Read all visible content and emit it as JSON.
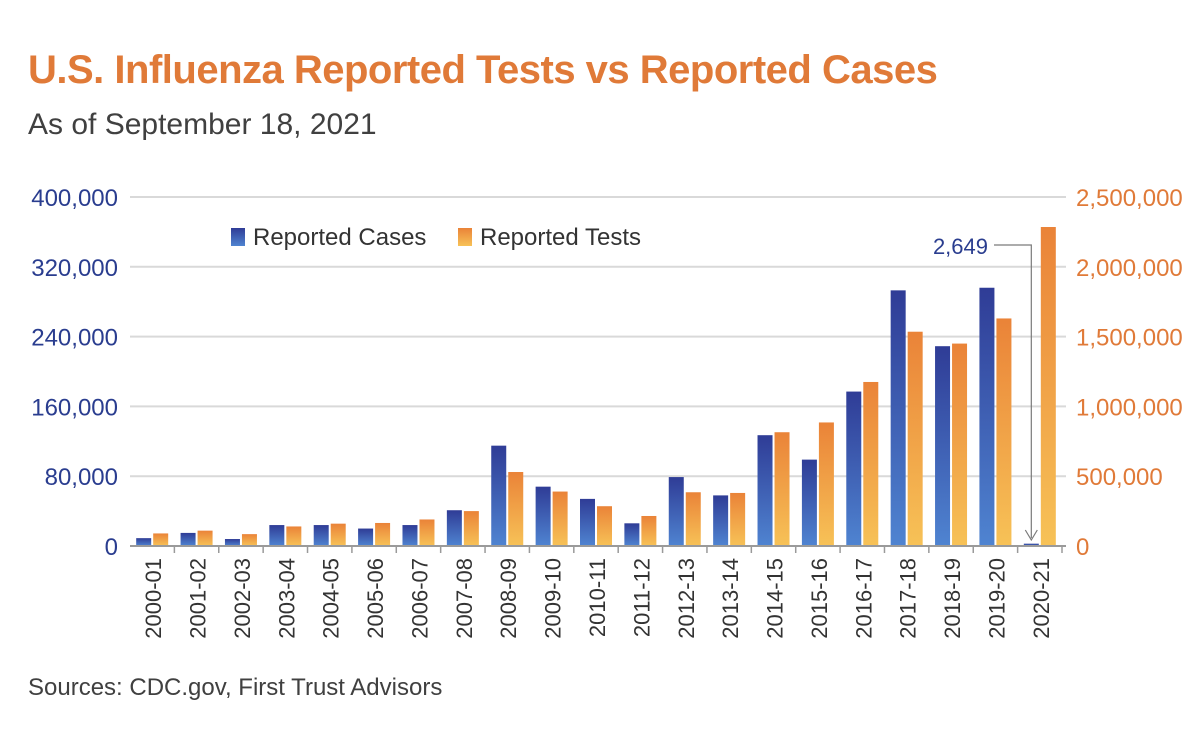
{
  "colors": {
    "title": "#e07a38",
    "subtitle": "#404040",
    "left_axis": "#2a3d8f",
    "right_axis": "#e07a38",
    "cases_top": "#2f3c96",
    "cases_bottom": "#4f84d1",
    "tests_top": "#ea8338",
    "tests_bottom": "#f7c257",
    "grid": "#d9d9d9",
    "source": "#404040"
  },
  "chart_data": {
    "type": "bar",
    "title": "U.S. Influenza Reported Tests vs Reported Cases",
    "subtitle": "As of September 18, 2021",
    "source": "Sources: CDC.gov, First Trust Advisors",
    "categories": [
      "2000-01",
      "2001-02",
      "2002-03",
      "2003-04",
      "2004-05",
      "2005-06",
      "2006-07",
      "2007-08",
      "2008-09",
      "2009-10",
      "2010-11",
      "2011-12",
      "2012-13",
      "2013-14",
      "2014-15",
      "2015-16",
      "2016-17",
      "2017-18",
      "2018-19",
      "2019-20",
      "2020-21"
    ],
    "series": [
      {
        "name": "Reported Cases",
        "axis": "left",
        "values": [
          9000,
          15000,
          8000,
          24000,
          24000,
          20000,
          24000,
          41000,
          115000,
          68000,
          54000,
          26000,
          79000,
          58000,
          127000,
          99000,
          177000,
          293000,
          229000,
          296000,
          2649
        ]
      },
      {
        "name": "Reported Tests",
        "axis": "right",
        "values": [
          90000,
          110000,
          85000,
          140000,
          160000,
          165000,
          190000,
          250000,
          530000,
          390000,
          285000,
          215000,
          385000,
          380000,
          815000,
          885000,
          1175000,
          1535000,
          1450000,
          1630000,
          2285000
        ]
      }
    ],
    "y_left": {
      "min": 0,
      "max": 400000,
      "ticks": [
        0,
        80000,
        160000,
        240000,
        320000,
        400000
      ],
      "tick_labels": [
        "0",
        "80,000",
        "160,000",
        "240,000",
        "320,000",
        "400,000"
      ]
    },
    "y_right": {
      "min": 0,
      "max": 2500000,
      "ticks": [
        0,
        500000,
        1000000,
        1500000,
        2000000,
        2500000
      ],
      "tick_labels": [
        "0",
        "500,000",
        "1,000,000",
        "1,500,000",
        "2,000,000",
        "2,500,000"
      ]
    },
    "annotation": {
      "text": "2,649",
      "category": "2020-21",
      "series": "Reported Cases"
    },
    "legend_position": "top-left",
    "grid": true
  }
}
